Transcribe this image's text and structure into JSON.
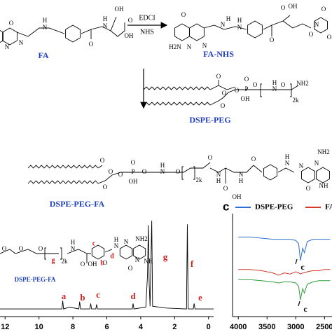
{
  "scheme": {
    "fa": {
      "label": "FA",
      "atoms": [
        "O",
        "N",
        "N",
        "N",
        "H",
        "O",
        "H",
        "N",
        "OH",
        "O",
        "OH"
      ]
    },
    "reagents": [
      "EDCI",
      "NHS"
    ],
    "fa_nhs": {
      "label": "FA-NHS",
      "atoms": [
        "O",
        "H",
        "N",
        "H2N",
        "N",
        "N",
        "H",
        "N",
        "O",
        "O",
        "OH",
        "O",
        "N",
        "O",
        "O"
      ]
    },
    "dspe_peg": {
      "label": "DSPE-PEG",
      "atoms": [
        "O",
        "O",
        "O",
        "O",
        "P",
        "O",
        "OH",
        "O",
        "N",
        "H",
        "O",
        "NH2",
        "2k"
      ]
    },
    "dspe_peg_fa": {
      "label": "DSPE-PEG-FA",
      "atoms": [
        "O",
        "O",
        "O",
        "O",
        "P",
        "O",
        "OH",
        "O",
        "N",
        "H",
        "O",
        "2k",
        "O",
        "N",
        "H",
        "O",
        "OH",
        "N",
        "H",
        "O",
        "N",
        "H",
        "N",
        "N",
        "NH2",
        "NH",
        "O"
      ]
    }
  },
  "chart_data": [
    {
      "type": "line",
      "x": [
        12.3,
        11.5,
        9,
        8.65,
        8.6,
        8.55,
        8.2,
        7.65,
        7.6,
        7.55,
        7.0,
        6.95,
        6.9,
        6.65,
        6.6,
        6.55,
        5.0,
        4.5,
        4.45,
        4.4,
        3.7,
        3.6,
        3.55,
        3.5,
        3.45,
        3.35,
        3.3,
        2.5,
        1.3,
        1.25,
        1.2,
        0.9,
        0.85,
        0.8,
        0,
        -0.3
      ],
      "series": [
        {
          "color": "#000000",
          "values": [
            3,
            3,
            3,
            3,
            12,
            3,
            5,
            3,
            11,
            3,
            3,
            9,
            3,
            3,
            8,
            3,
            3,
            3,
            9,
            3,
            5,
            40,
            95,
            30,
            6,
            100,
            6,
            4,
            3,
            96,
            3,
            3,
            9,
            3,
            3,
            3
          ]
        }
      ],
      "xlim": [
        12.3,
        -0.3
      ],
      "xticks": [
        12,
        10,
        8,
        6,
        4,
        2,
        0
      ],
      "ylim": [
        0,
        100
      ],
      "peak_labels": [
        "a",
        "b",
        "c",
        "d",
        "e",
        "f",
        "g"
      ],
      "label_color": "#d42020",
      "structure": {
        "label": "DSPE-PEG-FA",
        "atoms": [
          "O",
          "O",
          "O",
          "2k",
          "N",
          "H",
          "O",
          "OH",
          "O",
          "N",
          "H",
          "N",
          "N",
          "NH2",
          "NH",
          "O"
        ],
        "labels": [
          "g",
          "c",
          "b",
          "d"
        ]
      }
    },
    {
      "type": "line",
      "panel_label": "c",
      "x": [
        4000,
        3800,
        3600,
        3400,
        3300,
        3200,
        3100,
        3000,
        2950,
        2920,
        2880,
        2850,
        2800,
        2700,
        2600,
        2500,
        2400
      ],
      "series": [
        {
          "name": "DSPE-PEG",
          "color": "#2d6fcf",
          "values": [
            76,
            76,
            75,
            74,
            74,
            74,
            74,
            73,
            70,
            55,
            66,
            62,
            72,
            74,
            74,
            74,
            74
          ]
        },
        {
          "name": "FA",
          "color": "#d43a2a",
          "values": [
            47,
            47,
            46,
            44,
            42,
            44,
            43,
            45,
            44,
            43,
            44,
            44,
            45,
            46,
            46,
            47,
            47
          ]
        },
        {
          "color": "#2e9e3a",
          "values": [
            38,
            38,
            37,
            36,
            35,
            36,
            36,
            35,
            32,
            20,
            30,
            26,
            34,
            36,
            37,
            37,
            37
          ]
        }
      ],
      "xlim": [
        4100,
        2370
      ],
      "xticks": [
        4000,
        3500,
        3000,
        2500
      ],
      "ylim": [
        0,
        100
      ],
      "annotations": [
        "c",
        "c"
      ]
    }
  ]
}
